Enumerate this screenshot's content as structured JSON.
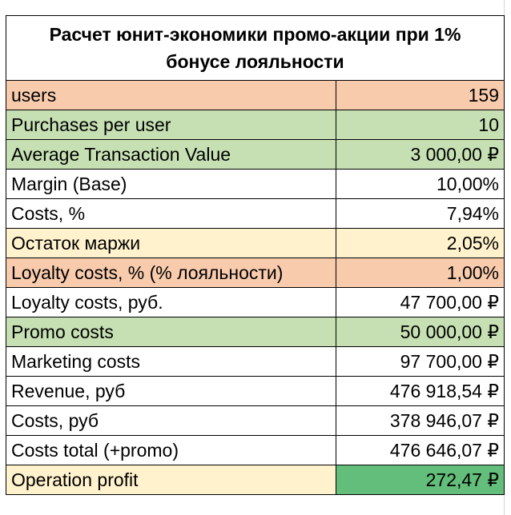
{
  "sheet": {
    "title_line1": "Расчет юнит-экономики промо-акции при 1%",
    "title_line2": "бонусе лояльности",
    "colors": {
      "salmon": "#f8cbad",
      "light_green": "#c6e0b4",
      "cream": "#fff2cc",
      "white": "#ffffff",
      "profit_green": "#63be7b"
    },
    "rows": [
      {
        "label": "users",
        "value": "159"
      },
      {
        "label": "Purchases per user",
        "value": "10"
      },
      {
        "label": "Average Transaction Value",
        "value": "3 000,00 ₽"
      },
      {
        "label": "Margin (Base)",
        "value": "10,00%"
      },
      {
        "label": "Costs, %",
        "value": "7,94%"
      },
      {
        "label": "Остаток маржи",
        "value": "2,05%"
      },
      {
        "label": "Loyalty costs, % (% лояльности)",
        "value": "1,00%"
      },
      {
        "label": "Loyalty costs, руб.",
        "value": "47 700,00 ₽"
      },
      {
        "label": "Promo costs",
        "value": "50 000,00 ₽"
      },
      {
        "label": "Marketing costs",
        "value": "97 700,00 ₽"
      },
      {
        "label": "Revenue, руб",
        "value": "476 918,54 ₽"
      },
      {
        "label": "Costs, руб",
        "value": "378 946,07 ₽"
      },
      {
        "label": "Costs total (+promo)",
        "value": "476 646,07 ₽"
      },
      {
        "label": "Operation profit",
        "value": "272,47 ₽"
      }
    ]
  }
}
